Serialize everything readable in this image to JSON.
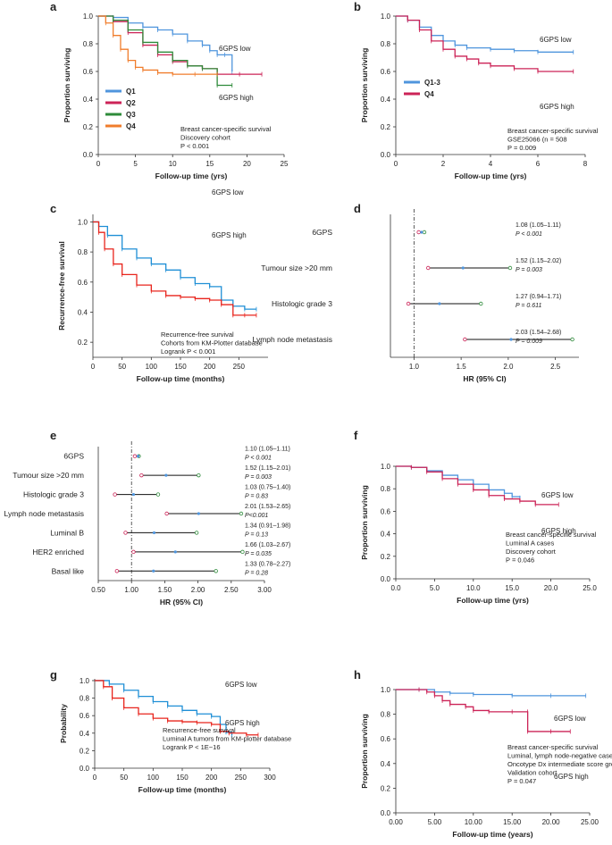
{
  "colors": {
    "blue": "#4f95dd",
    "red": "#cc2357",
    "green": "#2e8b3a",
    "orange": "#f07d2c",
    "km_blue": "#1f8fd6",
    "km_red": "#e8241c",
    "axis": "#333333"
  },
  "chart_data": [
    {
      "panel": "a",
      "type": "line",
      "xlabel": "Follow-up time (yrs)",
      "ylabel": "Proportion surviving",
      "xlim": [
        0,
        25
      ],
      "ylim": [
        0,
        1
      ],
      "xticks": [
        0,
        5,
        10,
        15,
        20,
        25
      ],
      "yticks": [
        0.0,
        0.2,
        0.4,
        0.6,
        0.8,
        1.0
      ],
      "ytick_decimals": 1,
      "legend_position": "middle-left",
      "legend": [
        "Q1",
        "Q2",
        "Q3",
        "Q4"
      ],
      "annotations": [
        "6GPS low",
        "6GPS high"
      ],
      "caption": [
        "Breast cancer-specific survival",
        "Discovery cohort",
        "P < 0.001"
      ],
      "series": [
        {
          "name": "Q1",
          "color": "blue",
          "x": [
            0,
            2,
            4,
            6,
            8,
            10,
            12,
            14,
            15,
            16,
            17,
            18
          ],
          "y": [
            1.0,
            0.99,
            0.95,
            0.92,
            0.9,
            0.87,
            0.82,
            0.79,
            0.75,
            0.72,
            0.72,
            0.6
          ]
        },
        {
          "name": "Q2",
          "color": "red",
          "x": [
            0,
            2,
            4,
            6,
            8,
            10,
            12,
            14,
            16,
            19,
            22
          ],
          "y": [
            1.0,
            0.96,
            0.88,
            0.79,
            0.72,
            0.67,
            0.64,
            0.62,
            0.58,
            0.58,
            0.58
          ]
        },
        {
          "name": "Q3",
          "color": "green",
          "x": [
            0,
            2,
            4,
            6,
            8,
            10,
            12,
            14,
            16,
            18
          ],
          "y": [
            1.0,
            0.97,
            0.9,
            0.81,
            0.74,
            0.68,
            0.64,
            0.62,
            0.5,
            0.5
          ]
        },
        {
          "name": "Q4",
          "color": "orange",
          "x": [
            0,
            1,
            2,
            3,
            4,
            5,
            6,
            8,
            10,
            13,
            16
          ],
          "y": [
            1.0,
            0.95,
            0.86,
            0.76,
            0.68,
            0.63,
            0.61,
            0.59,
            0.58,
            0.58,
            0.58
          ]
        }
      ]
    },
    {
      "panel": "b",
      "type": "line",
      "xlabel": "Follow-up time (yrs)",
      "ylabel": "Proportion surviving",
      "xlim": [
        0,
        8
      ],
      "ylim": [
        0,
        1
      ],
      "xticks": [
        0,
        2,
        4,
        6,
        8
      ],
      "yticks": [
        0.0,
        0.2,
        0.4,
        0.6,
        0.8,
        1.0
      ],
      "ytick_decimals": 1,
      "legend_position": "middle-left",
      "legend": [
        "Q1-3",
        "Q4"
      ],
      "annotations": [
        "6GPS low",
        "6GPS high"
      ],
      "caption": [
        "Breast cancer-specific survival",
        "GSE25066 (n = 508",
        "P = 0.009"
      ],
      "series": [
        {
          "name": "Q1-3",
          "color": "blue",
          "x": [
            0,
            0.5,
            1,
            1.5,
            2,
            2.5,
            3,
            4,
            5,
            6,
            7.5
          ],
          "y": [
            1.0,
            0.97,
            0.92,
            0.86,
            0.82,
            0.79,
            0.77,
            0.76,
            0.75,
            0.74,
            0.74
          ]
        },
        {
          "name": "Q4",
          "color": "red",
          "x": [
            0,
            0.5,
            1,
            1.5,
            2,
            2.5,
            3,
            3.5,
            4,
            5,
            6,
            7.5
          ],
          "y": [
            1.0,
            0.97,
            0.9,
            0.82,
            0.76,
            0.71,
            0.69,
            0.66,
            0.64,
            0.62,
            0.6,
            0.6
          ]
        }
      ]
    },
    {
      "panel": "c",
      "type": "line",
      "xlabel": "Follow-up time (months)",
      "ylabel": "Recurrence-free survival",
      "xlim": [
        0,
        300
      ],
      "ylim": [
        0.1,
        1.05
      ],
      "xticks": [
        0,
        50,
        100,
        150,
        200,
        250
      ],
      "yticks": [
        0.2,
        0.4,
        0.6,
        0.8,
        1.0
      ],
      "ytick_decimals": 1,
      "annotations": [
        "6GPS low",
        "6GPS high"
      ],
      "caption": [
        "Recurrence-free survival",
        "Cohorts from KM-Plotter database",
        "Logrank P < 0.001"
      ],
      "series": [
        {
          "color": "km_blue",
          "x": [
            0,
            10,
            25,
            50,
            75,
            100,
            125,
            150,
            175,
            200,
            220,
            240,
            260,
            280
          ],
          "y": [
            1.0,
            0.97,
            0.91,
            0.82,
            0.76,
            0.72,
            0.68,
            0.63,
            0.59,
            0.57,
            0.48,
            0.44,
            0.42,
            0.42
          ]
        },
        {
          "color": "km_red",
          "x": [
            0,
            10,
            20,
            35,
            50,
            75,
            100,
            125,
            150,
            175,
            200,
            220,
            240,
            260,
            280
          ],
          "y": [
            1.0,
            0.93,
            0.82,
            0.72,
            0.65,
            0.58,
            0.54,
            0.51,
            0.5,
            0.49,
            0.48,
            0.45,
            0.38,
            0.38,
            0.38
          ]
        }
      ]
    },
    {
      "panel": "d",
      "type": "forest",
      "xlabel": "HR (95% CI)",
      "xlim": [
        0.75,
        2.75
      ],
      "xticks": [
        1.0,
        1.5,
        2.0,
        2.5
      ],
      "xtick_decimals": 1,
      "reference": 1.0,
      "rows": [
        {
          "label": "6GPS",
          "hr": 1.08,
          "lo": 1.05,
          "hi": 1.11,
          "ci_text": "1.08 (1.05–1.11)",
          "p_text": "P < 0.001"
        },
        {
          "label": "Tumour size >20 mm",
          "hr": 1.52,
          "lo": 1.15,
          "hi": 2.02,
          "ci_text": "1.52 (1.15–2.02)",
          "p_text": "P = 0.003"
        },
        {
          "label": "Histologic grade 3",
          "hr": 1.27,
          "lo": 0.94,
          "hi": 1.71,
          "ci_text": "1.27 (0.94–1.71)",
          "p_text": "P = 0.611"
        },
        {
          "label": "Lymph node metastasis",
          "hr": 2.03,
          "lo": 1.54,
          "hi": 2.68,
          "ci_text": "2.03 (1.54–2.68)",
          "p_text": "P = 0.009"
        }
      ]
    },
    {
      "panel": "e",
      "type": "forest",
      "xlabel": "HR (95% CI)",
      "xlim": [
        0.5,
        3.0
      ],
      "xticks": [
        0.5,
        1.0,
        1.5,
        2.0,
        2.5,
        3.0
      ],
      "xtick_decimals": 2,
      "reference": 1.0,
      "rows": [
        {
          "label": "6GPS",
          "hr": 1.1,
          "lo": 1.05,
          "hi": 1.11,
          "ci_text": "1.10 (1.05–1.11)",
          "p_text": "P < 0.001"
        },
        {
          "label": "Tumour size >20 mm",
          "hr": 1.52,
          "lo": 1.15,
          "hi": 2.01,
          "ci_text": "1.52 (1.15–2.01)",
          "p_text": "P = 0.003"
        },
        {
          "label": "Histologic grade 3",
          "hr": 1.03,
          "lo": 0.75,
          "hi": 1.4,
          "ci_text": "1.03 (0.75–1.40)",
          "p_text": "P = 0.83"
        },
        {
          "label": "Lymph node metastasis",
          "hr": 2.01,
          "lo": 1.53,
          "hi": 2.65,
          "ci_text": "2.01 (1.53–2.65)",
          "p_text": "P<0.001"
        },
        {
          "label": "Luminal B",
          "hr": 1.34,
          "lo": 0.91,
          "hi": 1.98,
          "ci_text": "1.34 (0.91–1.98)",
          "p_text": "P = 0.13"
        },
        {
          "label": "HER2 enriched",
          "hr": 1.66,
          "lo": 1.03,
          "hi": 2.67,
          "ci_text": "1.66 (1.03–2.67)",
          "p_text": "P = 0.035"
        },
        {
          "label": "Basal like",
          "hr": 1.33,
          "lo": 0.78,
          "hi": 2.27,
          "ci_text": "1.33 (0.78–2.27)",
          "p_text": "P = 0.28"
        }
      ]
    },
    {
      "panel": "f",
      "type": "line",
      "xlabel": "Follow-up time (yrs)",
      "ylabel": "Proportion surviving",
      "xlim": [
        0,
        25
      ],
      "ylim": [
        0,
        1
      ],
      "xticks": [
        0.0,
        5.0,
        10.0,
        15.0,
        20.0,
        25.0
      ],
      "xtick_decimals": 1,
      "yticks": [
        0.0,
        0.2,
        0.4,
        0.6,
        0.8,
        1.0
      ],
      "ytick_decimals": 1,
      "annotations": [
        "6GPS low",
        "6GPS high"
      ],
      "caption": [
        "Breast cancer-specific survival",
        "Luminal A cases",
        "Discovery cohort",
        "P = 0.046"
      ],
      "series": [
        {
          "color": "blue",
          "x": [
            0,
            2,
            4,
            6,
            8,
            10,
            12,
            14,
            15,
            16
          ],
          "y": [
            1.0,
            0.99,
            0.96,
            0.92,
            0.88,
            0.84,
            0.79,
            0.76,
            0.73,
            0.72
          ]
        },
        {
          "color": "red",
          "x": [
            0,
            2,
            4,
            6,
            8,
            10,
            12,
            14,
            16,
            18,
            21
          ],
          "y": [
            1.0,
            0.99,
            0.95,
            0.89,
            0.84,
            0.79,
            0.74,
            0.71,
            0.69,
            0.66,
            0.66
          ]
        }
      ]
    },
    {
      "panel": "g",
      "type": "line",
      "xlabel": "Follow-up time (months)",
      "ylabel": "Probability",
      "xlim": [
        0,
        300
      ],
      "ylim": [
        0,
        1.02
      ],
      "xticks": [
        0,
        50,
        100,
        150,
        200,
        250,
        300
      ],
      "yticks": [
        0.0,
        0.2,
        0.4,
        0.6,
        0.8,
        1.0
      ],
      "ytick_decimals": 1,
      "annotations": [
        "6GPS low",
        "6GPS high"
      ],
      "caption": [
        "Recurrence-free survival",
        "Luminal A tumors from KM-plotter database",
        "Logrank P < 1E−16"
      ],
      "series": [
        {
          "color": "km_blue",
          "x": [
            0,
            25,
            50,
            75,
            100,
            125,
            150,
            175,
            200,
            215,
            225,
            235
          ],
          "y": [
            1.0,
            0.96,
            0.89,
            0.82,
            0.76,
            0.71,
            0.66,
            0.62,
            0.59,
            0.5,
            0.41,
            0.38
          ]
        },
        {
          "color": "km_red",
          "x": [
            0,
            15,
            30,
            50,
            75,
            100,
            125,
            150,
            175,
            200,
            215,
            230,
            260,
            280
          ],
          "y": [
            1.0,
            0.93,
            0.8,
            0.69,
            0.62,
            0.57,
            0.54,
            0.53,
            0.52,
            0.5,
            0.42,
            0.4,
            0.38,
            0.38
          ]
        }
      ]
    },
    {
      "panel": "h",
      "type": "line",
      "xlabel": "Follow-up time (years)",
      "ylabel": "Proportion surviving",
      "xlim": [
        0,
        25
      ],
      "ylim": [
        0,
        1
      ],
      "xticks": [
        0.0,
        5.0,
        10.0,
        15.0,
        20.0,
        25.0
      ],
      "xtick_decimals": 2,
      "yticks": [
        0.0,
        0.2,
        0.4,
        0.6,
        0.8,
        1.0
      ],
      "ytick_decimals": 1,
      "annotations": [
        "6GPS low",
        "6GPS high"
      ],
      "caption": [
        "Breast cancer-specific survival",
        "Luminal, lymph node-negative cases",
        "Oncotype Dx intermediate score group",
        "Validation cohort",
        "P = 0.047"
      ],
      "series": [
        {
          "color": "blue",
          "x": [
            0,
            3,
            5,
            7,
            10,
            15,
            20,
            24.5
          ],
          "y": [
            1.0,
            1.0,
            0.98,
            0.97,
            0.96,
            0.95,
            0.95,
            0.95
          ]
        },
        {
          "color": "red",
          "x": [
            0,
            3,
            4,
            5,
            6,
            7,
            9,
            10,
            12,
            15,
            17,
            17.01,
            20,
            22.5
          ],
          "y": [
            1.0,
            1.0,
            0.98,
            0.95,
            0.91,
            0.88,
            0.86,
            0.83,
            0.82,
            0.82,
            0.82,
            0.66,
            0.66,
            0.66
          ]
        }
      ]
    }
  ]
}
